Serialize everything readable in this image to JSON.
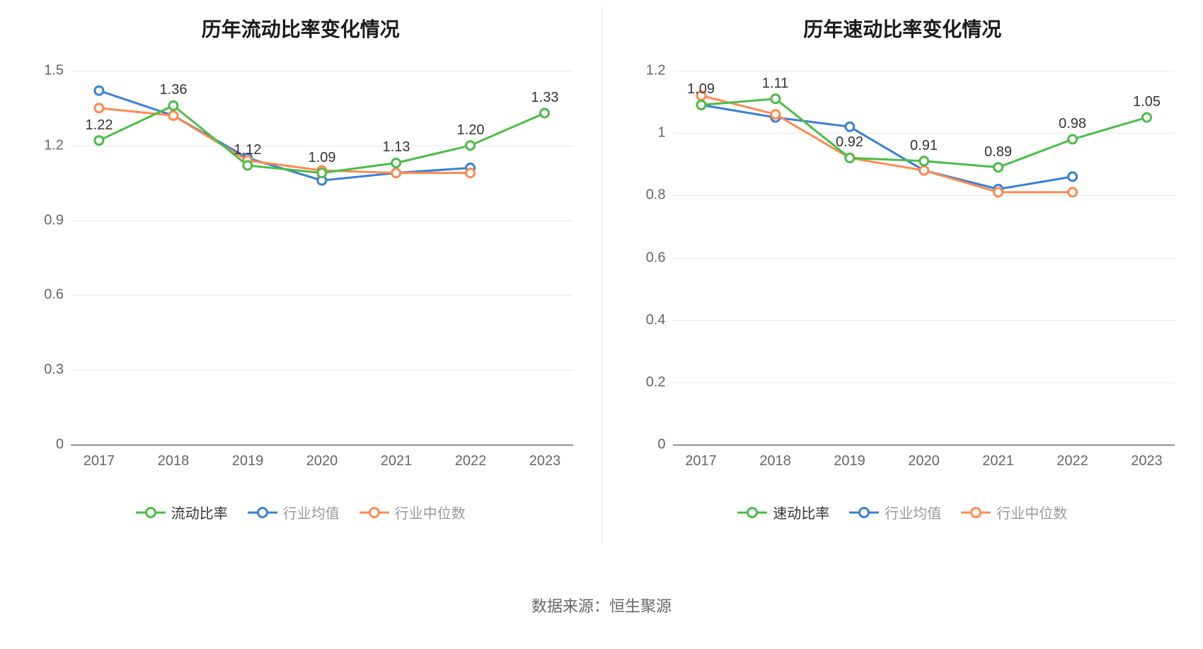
{
  "source_line": "数据来源：恒生聚源",
  "colors": {
    "primary": "#4bbd47",
    "industry_avg": "#3a7fd5",
    "industry_median": "#ff8a50",
    "grid": "#e8e8e8",
    "axis": "#333333",
    "text": "#333333",
    "muted_text": "#999999",
    "background": "#ffffff"
  },
  "left_chart": {
    "type": "line",
    "title": "历年流动比率变化情况",
    "categories": [
      "2017",
      "2018",
      "2019",
      "2020",
      "2021",
      "2022",
      "2023"
    ],
    "ylim": [
      0,
      1.5
    ],
    "ytick_step": 0.3,
    "yticks": [
      "0",
      "0.3",
      "0.6",
      "0.9",
      "1.2",
      "1.5"
    ],
    "line_width": 3,
    "marker_radius": 6,
    "marker_stroke": 3,
    "title_fontsize": 28,
    "tick_fontsize": 20,
    "label_fontsize": 20,
    "series": [
      {
        "name": "流动比率",
        "color": "#4bbd47",
        "values": [
          1.22,
          1.36,
          1.12,
          1.09,
          1.13,
          1.2,
          1.33
        ],
        "labels": [
          "1.22",
          "1.36",
          "1.12",
          "1.09",
          "1.13",
          "1.20",
          "1.33"
        ],
        "show_labels": true
      },
      {
        "name": "行业均值",
        "color": "#3a7fd5",
        "values": [
          1.42,
          1.32,
          1.15,
          1.06,
          1.09,
          1.11,
          null
        ],
        "show_labels": false
      },
      {
        "name": "行业中位数",
        "color": "#ff8a50",
        "values": [
          1.35,
          1.32,
          1.14,
          1.1,
          1.09,
          1.09,
          null
        ],
        "show_labels": false
      }
    ],
    "legend": [
      {
        "label": "流动比率",
        "color": "#4bbd47",
        "muted": false
      },
      {
        "label": "行业均值",
        "color": "#3a7fd5",
        "muted": true
      },
      {
        "label": "行业中位数",
        "color": "#ff8a50",
        "muted": true
      }
    ]
  },
  "right_chart": {
    "type": "line",
    "title": "历年速动比率变化情况",
    "categories": [
      "2017",
      "2018",
      "2019",
      "2020",
      "2021",
      "2022",
      "2023"
    ],
    "ylim": [
      0,
      1.2
    ],
    "ytick_step": 0.2,
    "yticks": [
      "0",
      "0.2",
      "0.4",
      "0.6",
      "0.8",
      "1",
      "1.2"
    ],
    "line_width": 3,
    "marker_radius": 6,
    "marker_stroke": 3,
    "title_fontsize": 28,
    "tick_fontsize": 20,
    "label_fontsize": 20,
    "series": [
      {
        "name": "速动比率",
        "color": "#4bbd47",
        "values": [
          1.09,
          1.11,
          0.92,
          0.91,
          0.89,
          0.98,
          1.05
        ],
        "labels": [
          "1.09",
          "1.11",
          "0.92",
          "0.91",
          "0.89",
          "0.98",
          "1.05"
        ],
        "show_labels": true
      },
      {
        "name": "行业均值",
        "color": "#3a7fd5",
        "values": [
          1.09,
          1.05,
          1.02,
          0.88,
          0.82,
          0.86,
          null
        ],
        "show_labels": false
      },
      {
        "name": "行业中位数",
        "color": "#ff8a50",
        "values": [
          1.12,
          1.06,
          0.92,
          0.88,
          0.81,
          0.81,
          null
        ],
        "show_labels": false
      }
    ],
    "legend": [
      {
        "label": "速动比率",
        "color": "#4bbd47",
        "muted": false
      },
      {
        "label": "行业均值",
        "color": "#3a7fd5",
        "muted": true
      },
      {
        "label": "行业中位数",
        "color": "#ff8a50",
        "muted": true
      }
    ]
  }
}
